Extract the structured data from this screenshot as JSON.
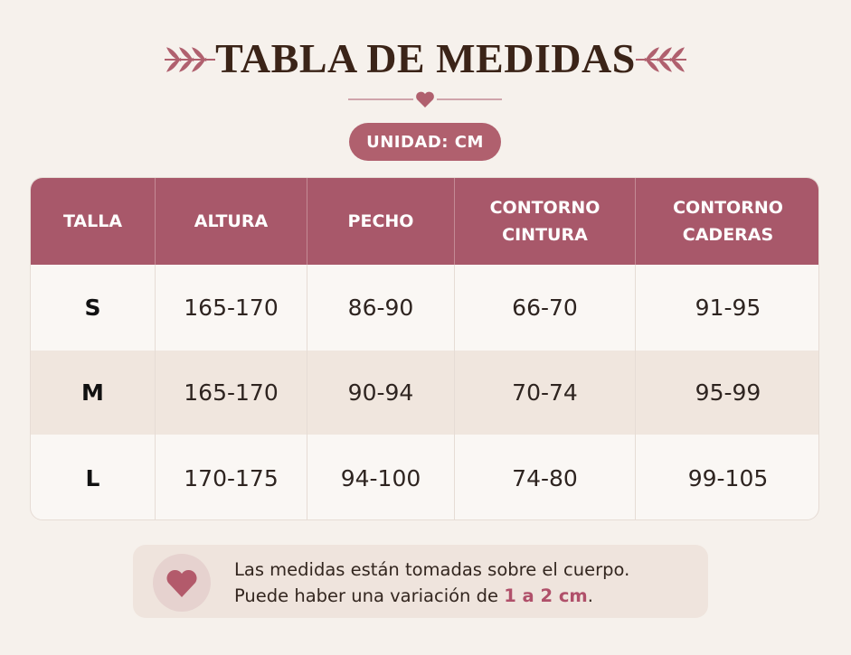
{
  "header": {
    "title": "TABLA DE MEDIDAS",
    "unit": "UNIDAD: CM"
  },
  "table": {
    "columns": [
      "TALLA",
      "ALTURA",
      "PECHO",
      "CONTORNO CINTURA",
      "CONTORNO CADERAS"
    ],
    "rows": [
      [
        "S",
        "165-170",
        "86-90",
        "66-70",
        "91-95"
      ],
      [
        "M",
        "165-170",
        "90-94",
        "70-74",
        "95-99"
      ],
      [
        "L",
        "170-175",
        "94-100",
        "74-80",
        "99-105"
      ]
    ]
  },
  "note": {
    "line1": "Las medidas están tomadas sobre el cuerpo.",
    "line2": "Puede haber una variación de ",
    "highlight": "1 a 2 cm",
    "end": "."
  }
}
